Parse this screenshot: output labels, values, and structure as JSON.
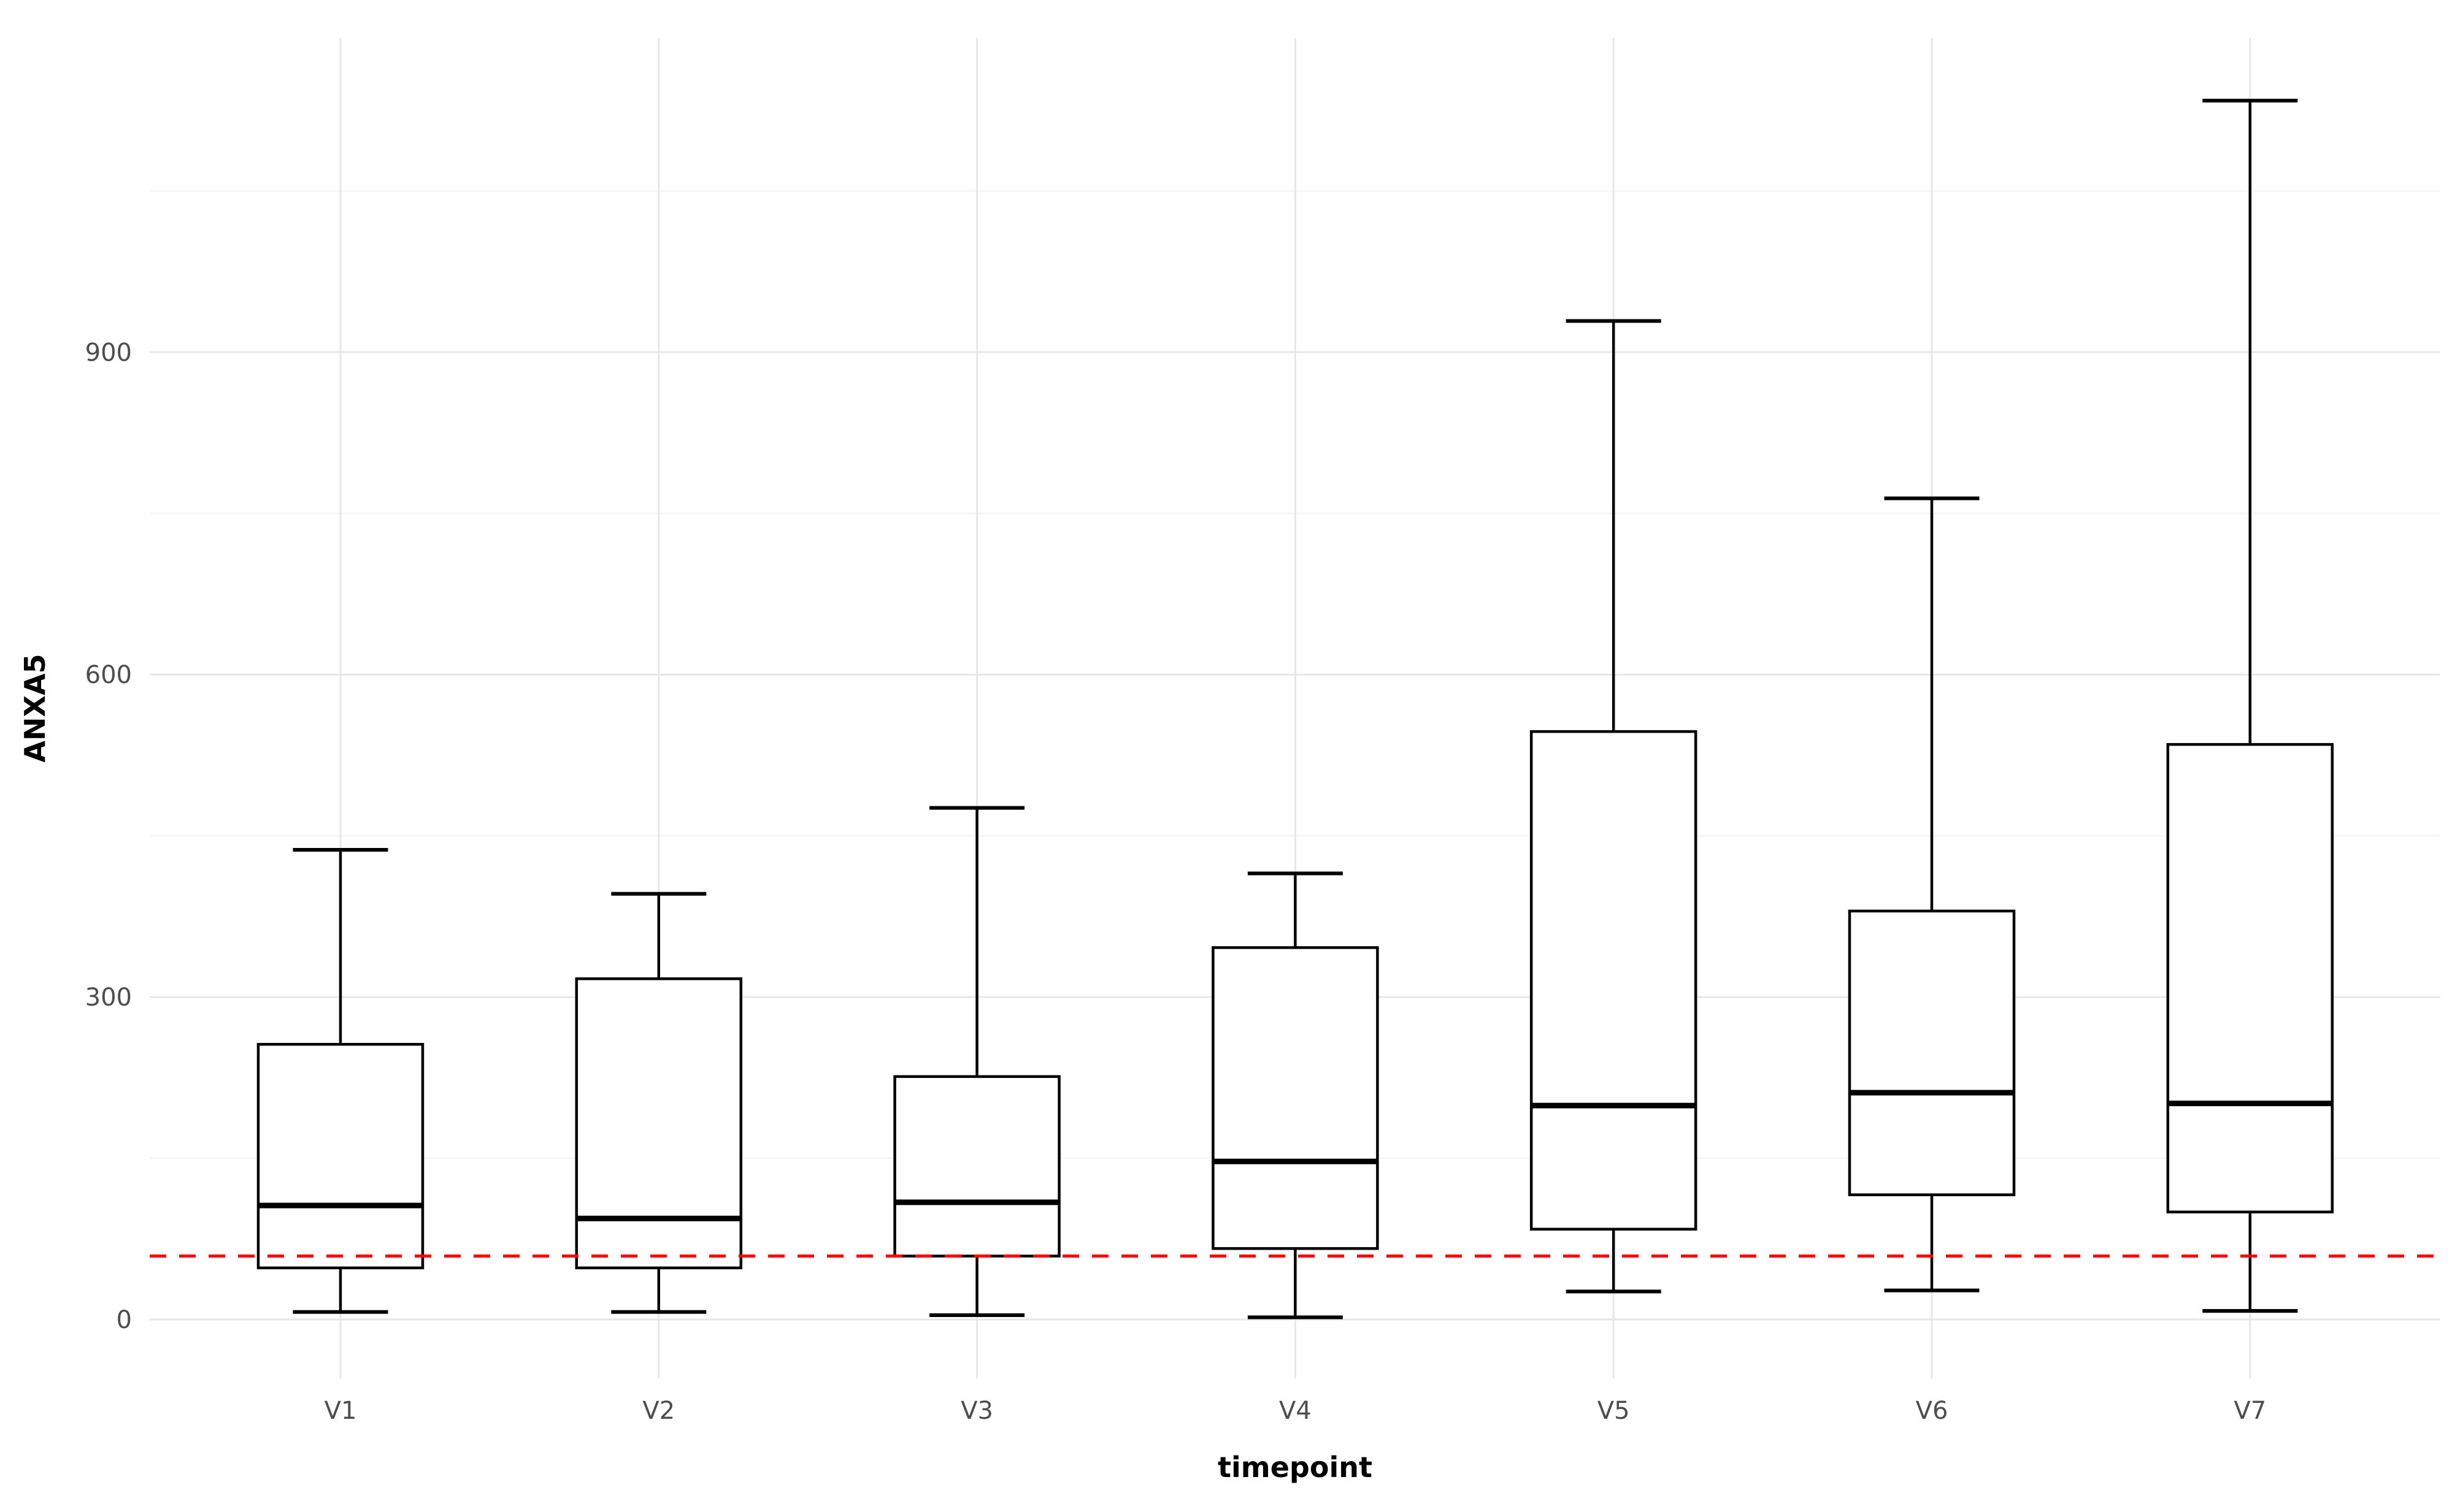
{
  "figure": {
    "background": "#ffffff"
  },
  "chart_data": {
    "type": "boxplot",
    "title": "",
    "xlabel": "timepoint",
    "ylabel": "ANXA5",
    "categories": [
      "V1",
      "V2",
      "V3",
      "V4",
      "V5",
      "V6",
      "V7"
    ],
    "boxes": [
      {
        "category": "V1",
        "whisker_low": 7,
        "q1": 48,
        "median": 106,
        "q3": 256,
        "whisker_high": 437
      },
      {
        "category": "V2",
        "whisker_low": 7,
        "q1": 48,
        "median": 94,
        "q3": 317,
        "whisker_high": 396
      },
      {
        "category": "V3",
        "whisker_low": 4,
        "q1": 59,
        "median": 109,
        "q3": 226,
        "whisker_high": 476
      },
      {
        "category": "V4",
        "whisker_low": 2,
        "q1": 66,
        "median": 147,
        "q3": 346,
        "whisker_high": 415
      },
      {
        "category": "V5",
        "whisker_low": 26,
        "q1": 84,
        "median": 199,
        "q3": 547,
        "whisker_high": 929
      },
      {
        "category": "V6",
        "whisker_low": 27,
        "q1": 116,
        "median": 211,
        "q3": 380,
        "whisker_high": 764
      },
      {
        "category": "V7",
        "whisker_low": 8,
        "q1": 100,
        "median": 201,
        "q3": 535,
        "whisker_high": 1134
      }
    ],
    "reference_line": {
      "value": 59,
      "color": "#fe0000",
      "style": "dashed"
    },
    "y_axis": {
      "ticks": [
        0,
        300,
        600,
        900
      ],
      "tick_labels": [
        "0",
        "300",
        "600",
        "900"
      ],
      "minor_ticks": [
        150,
        450,
        750,
        1050
      ],
      "range": [
        -55,
        1192
      ]
    },
    "grid": true,
    "legend": false,
    "colors": {
      "box_fill": "#ffffff",
      "box_stroke": "#000000",
      "median_stroke": "#000000",
      "grid_major": "#e7e7e7",
      "grid_minor": "#f2f2f2",
      "tick_label": "#4d4d4d",
      "axis_title": "#000000",
      "background": "#ffffff"
    }
  }
}
